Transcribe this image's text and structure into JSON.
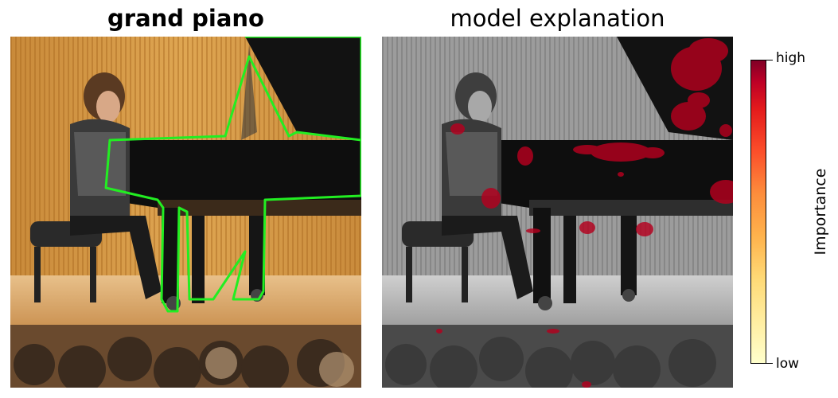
{
  "left_panel": {
    "title": "grand piano"
  },
  "right_panel": {
    "title": "model explanation"
  },
  "colorbar": {
    "label": "Importance",
    "high_label": "high",
    "low_label": "low",
    "colormap": [
      "#ffffcc",
      "#ffeda0",
      "#fed976",
      "#feb24c",
      "#fd8d3c",
      "#fc4e2a",
      "#e31a1c",
      "#bd0026",
      "#800026"
    ]
  },
  "colors": {
    "outline": "#22ee22",
    "heat": "#b4001e"
  }
}
